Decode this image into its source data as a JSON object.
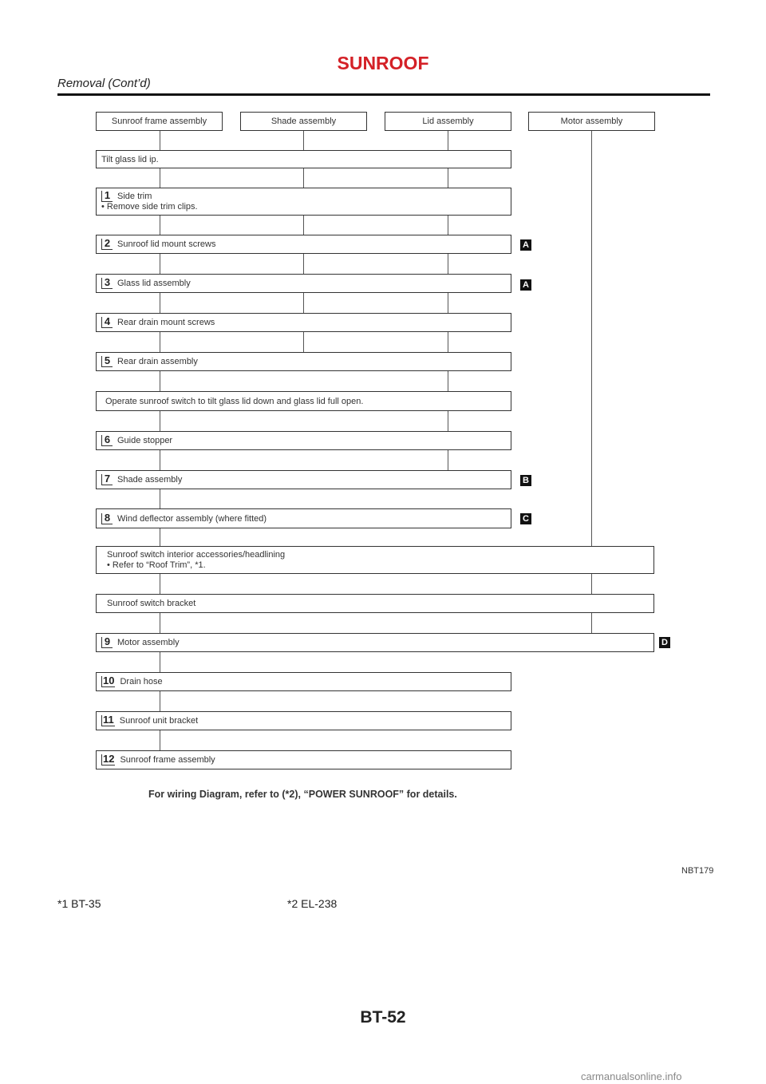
{
  "header": {
    "title": "SUNROOF",
    "subtitle": "Removal (Cont’d)"
  },
  "flow": {
    "headers": [
      "Sunroof frame assembly",
      "Shade assembly",
      "Lid assembly",
      "Motor assembly"
    ],
    "tilt": "Tilt glass lid ip.",
    "steps": {
      "s1": {
        "num": "1",
        "line1": "Side trim",
        "line2": "• Remove side trim clips."
      },
      "s2": {
        "num": "2",
        "label": "Sunroof lid mount screws",
        "tag": "A"
      },
      "s3": {
        "num": "3",
        "label": "Glass lid assembly",
        "tag": "A"
      },
      "s4": {
        "num": "4",
        "label": "Rear drain mount screws"
      },
      "s5": {
        "num": "5",
        "label": "Rear drain assembly"
      },
      "op": "Operate sunroof switch to tilt glass lid down and glass lid full open.",
      "s6": {
        "num": "6",
        "label": "Guide stopper"
      },
      "s7": {
        "num": "7",
        "label": "Shade assembly",
        "tag": "B"
      },
      "s8": {
        "num": "8",
        "label": "Wind deflector assembly (where fitted)",
        "tag": "C"
      },
      "acc": {
        "line1": "Sunroof switch interior accessories/headlining",
        "line2": "• Refer to “Roof Trim”, *1."
      },
      "bracket": "Sunroof switch bracket",
      "s9": {
        "num": "9",
        "label": "Motor assembly",
        "tag": "D"
      },
      "s10": {
        "num": "10",
        "label": "Drain hose"
      },
      "s11": {
        "num": "11",
        "label": "Sunroof unit bracket"
      },
      "s12": {
        "num": "12",
        "label": "Sunroof frame assembly"
      }
    }
  },
  "note": "For wiring Diagram, refer to (*2), “POWER SUNROOF” for details.",
  "figure_code": "NBT179",
  "footnotes": {
    "f1": "*1   BT-35",
    "f2": "*2   EL-238"
  },
  "page_number": "BT-52",
  "watermark": "carmanualsonline.info"
}
